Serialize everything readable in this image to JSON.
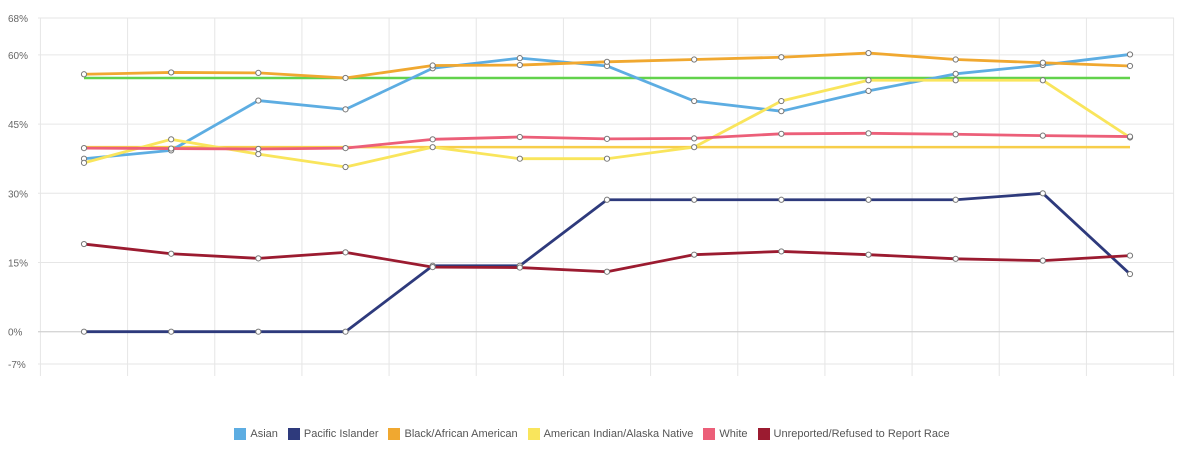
{
  "chart_data": {
    "type": "line",
    "title": "",
    "xlabel": "",
    "ylabel": "",
    "ylim": [
      -7,
      68
    ],
    "yticks": [
      {
        "value": 68,
        "label": "68%"
      },
      {
        "value": 60,
        "label": "60%"
      },
      {
        "value": 45,
        "label": "45%"
      },
      {
        "value": 30,
        "label": "30%"
      },
      {
        "value": 15,
        "label": "15%"
      },
      {
        "value": 0,
        "label": "0%"
      },
      {
        "value": -7,
        "label": "-7%"
      }
    ],
    "x_count": 13,
    "grid": true,
    "legend_position": "bottom",
    "series": [
      {
        "name": "Asian",
        "color": "#5dade2",
        "style": "line",
        "values": [
          37.5,
          39.3,
          50.1,
          48.2,
          57.1,
          59.3,
          57.6,
          50.0,
          47.8,
          52.2,
          55.9,
          57.8,
          60.1
        ]
      },
      {
        "name": "Pacific Islander",
        "color": "#2e3a7c",
        "style": "line",
        "values": [
          0,
          0,
          0,
          0,
          14.3,
          14.3,
          28.6,
          28.6,
          28.6,
          28.6,
          28.6,
          30.0,
          12.5
        ]
      },
      {
        "name": "Black/African American",
        "color": "#f0a830",
        "style": "line",
        "values": [
          55.8,
          56.2,
          56.1,
          55.0,
          57.7,
          57.8,
          58.5,
          59.0,
          59.5,
          60.4,
          59.0,
          58.3,
          57.6
        ]
      },
      {
        "name": "American Indian/Alaska Native",
        "color": "#f9e55c",
        "style": "line",
        "values": [
          36.6,
          41.7,
          38.5,
          35.7,
          40.0,
          37.5,
          37.5,
          40.0,
          50.0,
          54.5,
          54.5,
          54.5,
          42.1
        ]
      },
      {
        "name": "White",
        "color": "#ec5f79",
        "style": "line",
        "values": [
          39.8,
          39.7,
          39.6,
          39.8,
          41.7,
          42.2,
          41.8,
          41.9,
          42.9,
          43.0,
          42.8,
          42.5,
          42.3
        ]
      },
      {
        "name": "Unreported/Refused to Report Race",
        "color": "#9b1b30",
        "style": "line",
        "values": [
          19.0,
          16.9,
          15.9,
          17.2,
          14.0,
          13.9,
          13.0,
          16.7,
          17.4,
          16.7,
          15.8,
          15.4,
          16.5
        ]
      }
    ],
    "reference_lines": [
      {
        "value": 55,
        "color": "#62d24c"
      },
      {
        "value": 40,
        "color": "#f7ce4a"
      }
    ],
    "legend": [
      {
        "label": "Asian",
        "color": "#5dade2"
      },
      {
        "label": "Pacific Islander",
        "color": "#2e3a7c"
      },
      {
        "label": "Black/African American",
        "color": "#f0a830"
      },
      {
        "label": "American Indian/Alaska Native",
        "color": "#f9e55c"
      },
      {
        "label": "White",
        "color": "#ec5f79"
      },
      {
        "label": "Unreported/Refused to Report Race",
        "color": "#9b1b30"
      }
    ]
  }
}
